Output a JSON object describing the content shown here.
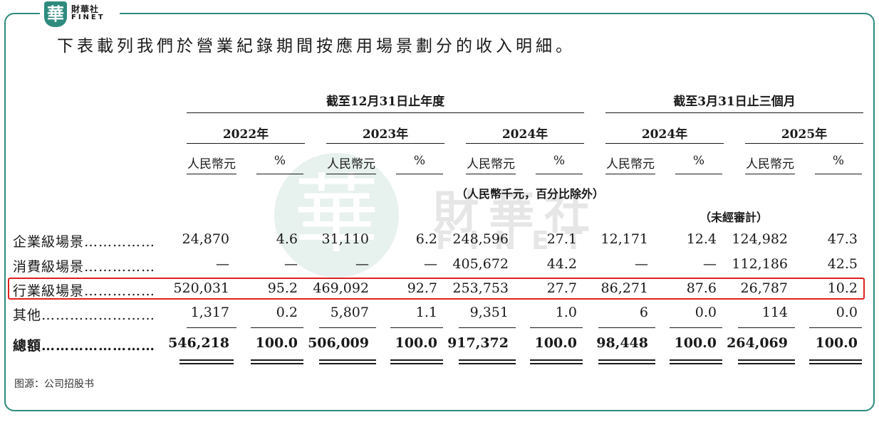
{
  "logo": {
    "glyph": "華",
    "name_cn": "財華社",
    "name_en": "FINET"
  },
  "heading": "下表載列我們於營業紀錄期間按應用場景劃分的收入明細。",
  "watermark": {
    "glyph": "華",
    "cn": "財華社",
    "en": "FINET"
  },
  "table": {
    "group_headers": [
      "截至12月31日止年度",
      "截至3月31日止三個月"
    ],
    "years": [
      "2022年",
      "2023年",
      "2024年",
      "2024年",
      "2025年"
    ],
    "subheaders": [
      "人民幣元",
      "%",
      "人民幣元",
      "%",
      "人民幣元",
      "%",
      "人民幣元",
      "%",
      "人民幣元",
      "%"
    ],
    "units_note": "（人民幣千元，百分比除外）",
    "unaudited_note": "（未經審計）",
    "rows": [
      {
        "label": "企業級場景……………",
        "values": [
          "24,870",
          "4.6",
          "31,110",
          "6.2",
          "248,596",
          "27.1",
          "12,171",
          "12.4",
          "124,982",
          "47.3"
        ]
      },
      {
        "label": "消費級場景……………",
        "values": [
          "—",
          "—",
          "—",
          "—",
          "405,672",
          "44.2",
          "—",
          "—",
          "112,186",
          "42.5"
        ]
      },
      {
        "label": "行業級場景……………",
        "values": [
          "520,031",
          "95.2",
          "469,092",
          "92.7",
          "253,753",
          "27.7",
          "86,271",
          "87.6",
          "26,787",
          "10.2"
        ]
      },
      {
        "label": "其他……………………",
        "values": [
          "1,317",
          "0.2",
          "5,807",
          "1.1",
          "9,351",
          "1.0",
          "6",
          "0.0",
          "114",
          "0.0"
        ]
      },
      {
        "label": "總額……………………",
        "values": [
          "546,218",
          "100.0",
          "506,009",
          "100.0",
          "917,372",
          "100.0",
          "98,448",
          "100.0",
          "264,069",
          "100.0"
        ]
      }
    ]
  },
  "source": "图源：公司招股书",
  "colors": {
    "frame": "#2e8b7e",
    "highlight": "#e02020"
  }
}
